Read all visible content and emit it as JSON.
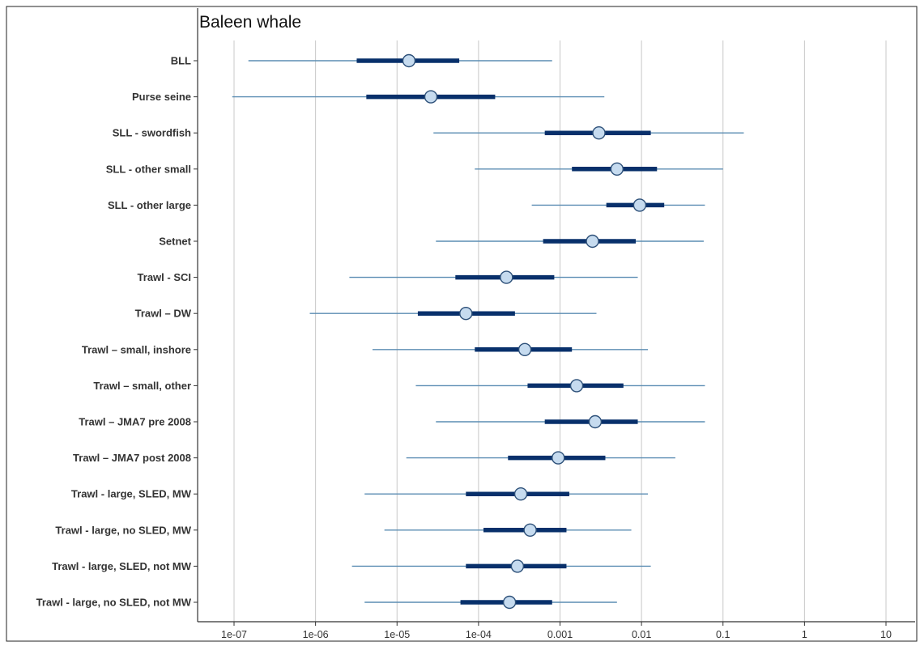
{
  "chart_data": {
    "type": "scatter",
    "subtype": "interval-plot",
    "title": "Baleen whale",
    "xlabel": "",
    "ylabel": "",
    "x_scale": "log",
    "xlim": [
      2.5e-08,
      40
    ],
    "x_ticks": [
      1e-07,
      1e-06,
      1e-05,
      0.0001,
      0.001,
      0.01,
      0.1,
      1,
      10
    ],
    "x_tick_labels": [
      "1e-07",
      "1e-06",
      "1e-05",
      "1e-04",
      "0.001",
      "0.01",
      "0.1",
      "1",
      "10"
    ],
    "grid": "vertical major",
    "legend": "none",
    "colors": {
      "outer_interval": "#5b8db3",
      "inner_interval": "#08306b",
      "point_fill": "#c6dbef",
      "point_stroke": "#2c4f78",
      "grid": "#c8c8c8",
      "axis": "#333333"
    },
    "series": [
      {
        "category": "BLL",
        "median": 1.4e-05,
        "inner": [
          3.2e-06,
          5.8e-05
        ],
        "outer": [
          1.5e-07,
          0.0008
        ]
      },
      {
        "category": "Purse seine",
        "median": 2.6e-05,
        "inner": [
          4.2e-06,
          0.00016
        ],
        "outer": [
          9.5e-08,
          0.0035
        ]
      },
      {
        "category": "SLL - swordfish",
        "median": 0.003,
        "inner": [
          0.00065,
          0.013
        ],
        "outer": [
          2.8e-05,
          0.18
        ]
      },
      {
        "category": "SLL - other small",
        "median": 0.005,
        "inner": [
          0.0014,
          0.0155
        ],
        "outer": [
          9e-05,
          0.1
        ]
      },
      {
        "category": "SLL - other large",
        "median": 0.0095,
        "inner": [
          0.0037,
          0.019
        ],
        "outer": [
          0.00045,
          0.06
        ]
      },
      {
        "category": "Setnet",
        "median": 0.0025,
        "inner": [
          0.00062,
          0.0085
        ],
        "outer": [
          3e-05,
          0.058
        ]
      },
      {
        "category": "Trawl - SCI",
        "median": 0.00022,
        "inner": [
          5.2e-05,
          0.00085
        ],
        "outer": [
          2.6e-06,
          0.009
        ]
      },
      {
        "category": "Trawl – DW",
        "median": 7e-05,
        "inner": [
          1.8e-05,
          0.00028
        ],
        "outer": [
          8.5e-07,
          0.0028
        ]
      },
      {
        "category": "Trawl – small, inshore",
        "median": 0.00037,
        "inner": [
          9e-05,
          0.0014
        ],
        "outer": [
          5e-06,
          0.012
        ]
      },
      {
        "category": "Trawl – small, other",
        "median": 0.0016,
        "inner": [
          0.0004,
          0.006
        ],
        "outer": [
          1.7e-05,
          0.06
        ]
      },
      {
        "category": "Trawl – JMA7 pre 2008",
        "median": 0.0027,
        "inner": [
          0.00065,
          0.009
        ],
        "outer": [
          3e-05,
          0.06
        ]
      },
      {
        "category": "Trawl – JMA7 post 2008",
        "median": 0.00095,
        "inner": [
          0.00023,
          0.0036
        ],
        "outer": [
          1.3e-05,
          0.026
        ]
      },
      {
        "category": "Trawl - large, SLED, MW",
        "median": 0.00033,
        "inner": [
          7e-05,
          0.0013
        ],
        "outer": [
          4e-06,
          0.012
        ]
      },
      {
        "category": "Trawl - large, no SLED, MW",
        "median": 0.00043,
        "inner": [
          0.000115,
          0.0012
        ],
        "outer": [
          7e-06,
          0.0075
        ]
      },
      {
        "category": "Trawl - large, SLED, not MW",
        "median": 0.0003,
        "inner": [
          7e-05,
          0.0012
        ],
        "outer": [
          2.8e-06,
          0.013
        ]
      },
      {
        "category": "Trawl - large, no SLED, not MW",
        "median": 0.00024,
        "inner": [
          6e-05,
          0.0008
        ],
        "outer": [
          4e-06,
          0.005
        ]
      }
    ]
  }
}
